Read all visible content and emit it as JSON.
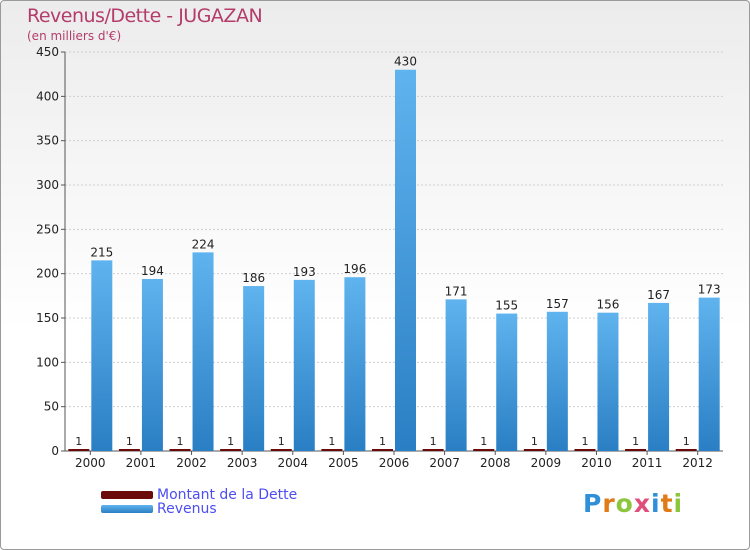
{
  "header": {
    "title": "Revenus/Dette - JUGAZAN",
    "subtitle": "(en milliers d'€)"
  },
  "colors": {
    "title": "#b43c6a",
    "debt": "#6b0a0a",
    "revenue": "#4aa3e3",
    "revenue_dark": "#2a7fc4",
    "legend_text": "#4d4ef0"
  },
  "chart_data": {
    "type": "bar",
    "title": "Revenus/Dette - JUGAZAN",
    "ylabel": "(en milliers d'€)",
    "xlabel": "",
    "ylim": [
      0,
      450
    ],
    "yticks": [
      0,
      50,
      100,
      150,
      200,
      250,
      300,
      350,
      400,
      450
    ],
    "grid": true,
    "categories": [
      "2000",
      "2001",
      "2002",
      "2003",
      "2004",
      "2005",
      "2006",
      "2007",
      "2008",
      "2009",
      "2010",
      "2011",
      "2012"
    ],
    "series": [
      {
        "name": "Montant de la Dette",
        "values": [
          1,
          1,
          1,
          1,
          1,
          1,
          1,
          1,
          1,
          1,
          1,
          1,
          1
        ]
      },
      {
        "name": "Revenus",
        "values": [
          215,
          194,
          224,
          186,
          193,
          196,
          430,
          171,
          155,
          157,
          156,
          167,
          173
        ]
      }
    ],
    "legend": "bottom-left"
  },
  "legend": {
    "debt_label": "Montant de la Dette",
    "revenue_label": "Revenus"
  },
  "logo": {
    "letters": [
      "P",
      "r",
      "o",
      "x",
      "i",
      "t",
      "i"
    ],
    "colors": [
      "#2f8fd8",
      "#e07b18",
      "#8cc63f",
      "#e04f7c",
      "#2f8fd8",
      "#e07b18",
      "#8cc63f"
    ]
  }
}
